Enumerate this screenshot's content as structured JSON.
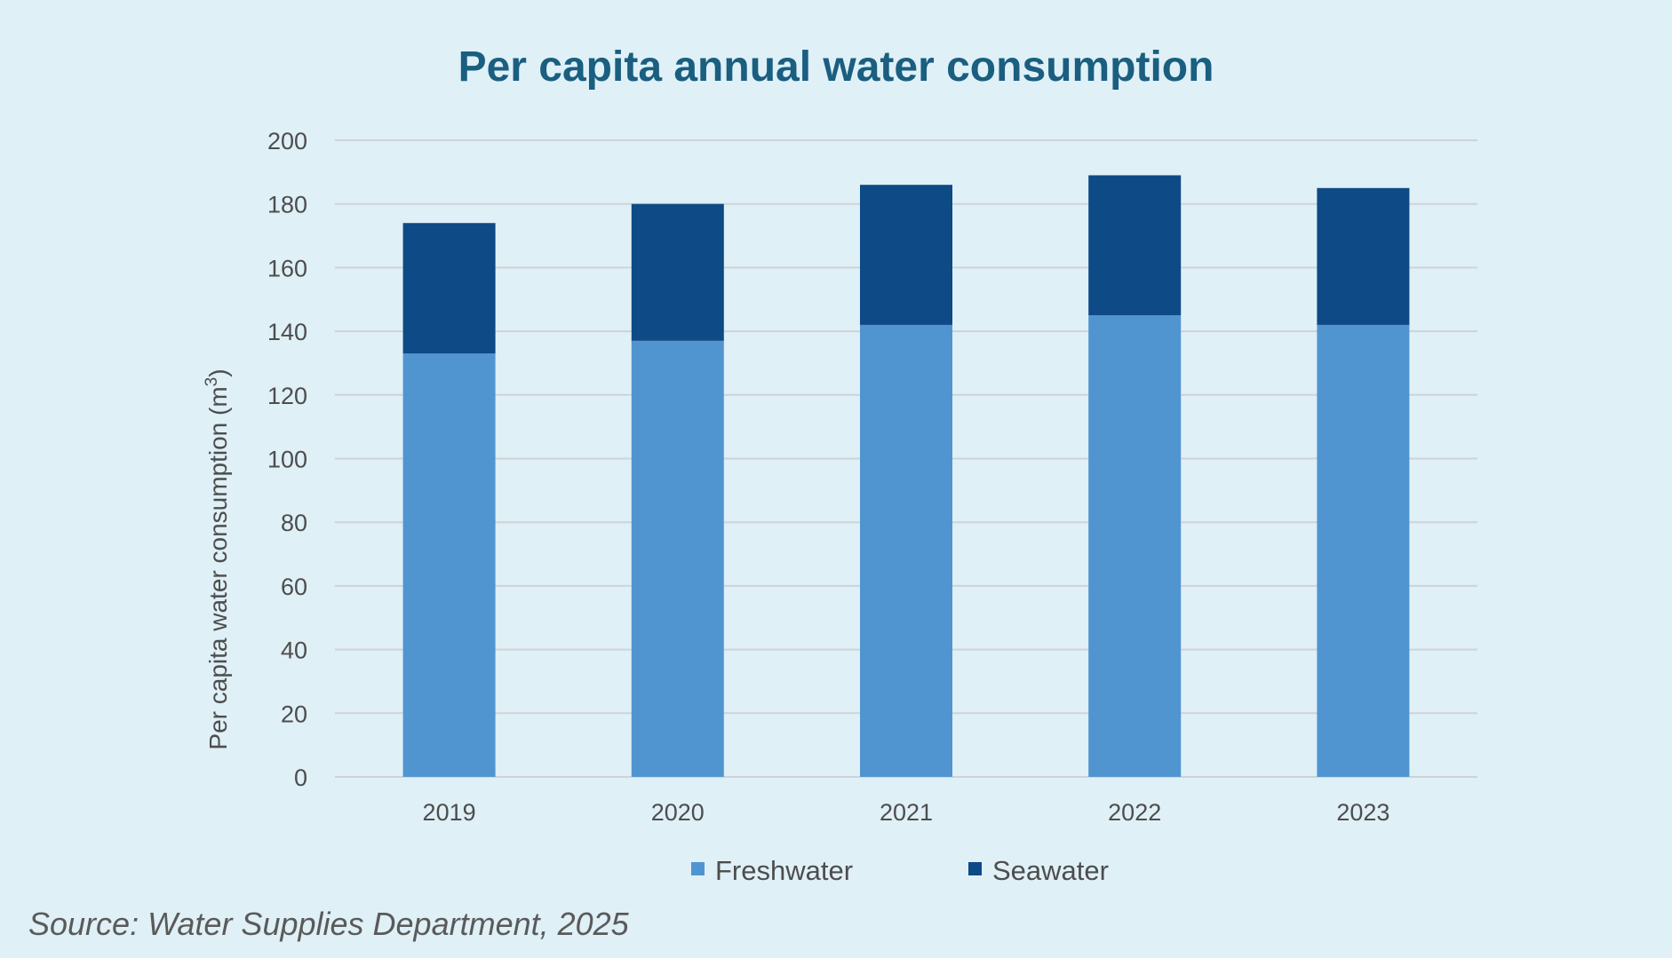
{
  "chart_data": {
    "type": "bar",
    "stacked": true,
    "title": "Per capita annual water consumption",
    "ylabel": "Per capita water consumption (m",
    "ylabel_superscript": "3",
    "ylabel_close": ")",
    "xlabel": "",
    "categories": [
      "2019",
      "2020",
      "2021",
      "2022",
      "2023"
    ],
    "series": [
      {
        "name": "Freshwater",
        "color": "#5195d0",
        "values": [
          133,
          137,
          142,
          145,
          142
        ]
      },
      {
        "name": "Seawater",
        "color": "#0d4a86",
        "values": [
          41,
          43,
          44,
          44,
          43
        ]
      }
    ],
    "ylim": [
      0,
      200
    ],
    "yticks": [
      "0",
      "20",
      "40",
      "60",
      "80",
      "100",
      "120",
      "140",
      "160",
      "180",
      "200"
    ],
    "grid": true,
    "legend_position": "bottom"
  },
  "source": "Source: Water Supplies Department, 2025",
  "colors": {
    "background": "#dff0f7",
    "title": "#1a5e80",
    "gridline": "#cfd3d6",
    "text": "#4d4d4d"
  }
}
